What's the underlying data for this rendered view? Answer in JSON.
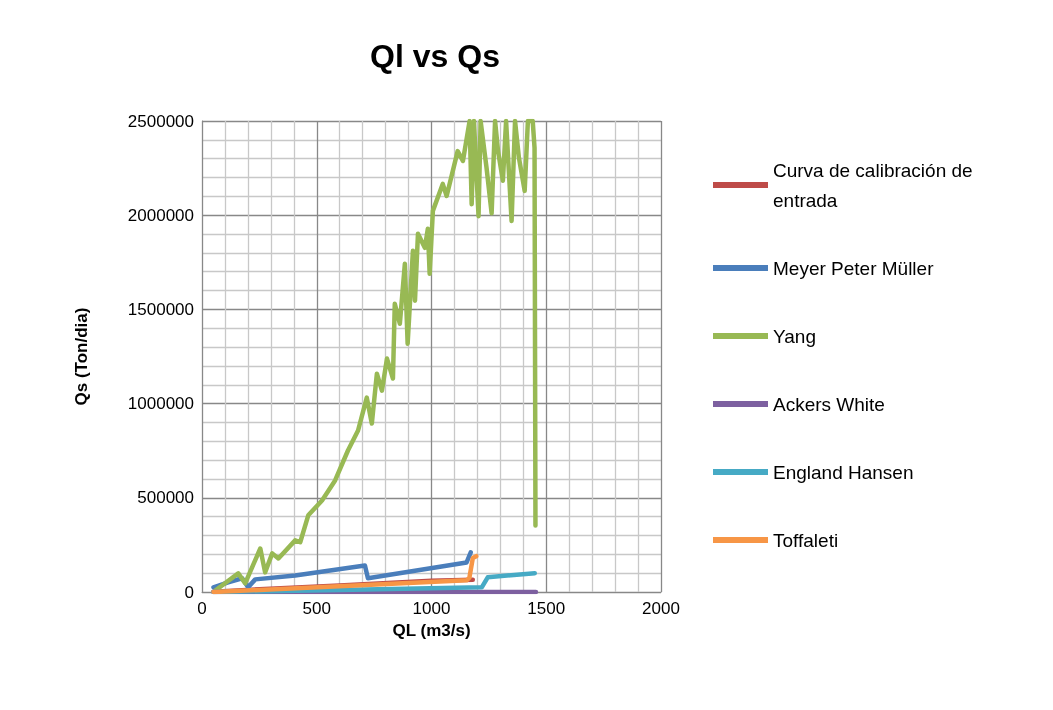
{
  "chart_data": {
    "type": "line",
    "title": "Ql vs Qs",
    "xlabel": "QL (m3/s)",
    "ylabel": "Qs (Ton/dia)",
    "xlim": [
      0,
      2000
    ],
    "xticks": [
      0,
      500,
      1000,
      1500,
      2000
    ],
    "ylim": [
      0,
      2500000
    ],
    "yticks": [
      0,
      500000,
      1000000,
      1500000,
      2000000,
      2500000
    ],
    "grid": true,
    "legend": "right",
    "marker": "none",
    "line_style": "solid",
    "series": [
      {
        "name": "Curva de calibración de entrada",
        "color": "#be4b48",
        "x": [
          50,
          600,
          1000,
          1180
        ],
        "values": [
          2000,
          35000,
          60000,
          65000
        ]
      },
      {
        "name": "Meyer Peter Müller",
        "color": "#4a7ebb",
        "x": [
          50,
          114,
          175,
          201,
          232,
          406,
          710,
          723,
          1153,
          1171
        ],
        "values": [
          25000,
          51000,
          73000,
          25000,
          67000,
          88000,
          141000,
          73000,
          157000,
          210000
        ]
      },
      {
        "name": "Yang",
        "color": "#98b954",
        "x": [
          58,
          158,
          188,
          254,
          275,
          306,
          333,
          406,
          428,
          463,
          523,
          580,
          636,
          680,
          718,
          740,
          762,
          784,
          806,
          832,
          840,
          862,
          884,
          896,
          919,
          928,
          941,
          971,
          984,
          992,
          1006,
          1049,
          1066,
          1114,
          1137,
          1166,
          1175,
          1185,
          1205,
          1214,
          1240,
          1262,
          1277,
          1290,
          1311,
          1325,
          1349,
          1364,
          1381,
          1406,
          1420,
          1441,
          1449,
          1453
        ],
        "values": [
          8000,
          99000,
          46000,
          231000,
          104000,
          205000,
          178000,
          274000,
          264000,
          407000,
          486000,
          592000,
          751000,
          857000,
          1032000,
          894000,
          1159000,
          1069000,
          1239000,
          1133000,
          1530000,
          1424000,
          1742000,
          1318000,
          1811000,
          1546000,
          1901000,
          1827000,
          1928000,
          1689000,
          2023000,
          2166000,
          2102000,
          2340000,
          2288000,
          2500000,
          2058000,
          2500000,
          1995000,
          2500000,
          2250000,
          2010000,
          2500000,
          2340000,
          2183000,
          2500000,
          1969000,
          2500000,
          2304000,
          2129000,
          2500000,
          2500000,
          2357000,
          353000
        ]
      },
      {
        "name": "Ackers White",
        "color": "#7d60a0",
        "x": [
          50,
          1455
        ],
        "values": [
          0,
          0
        ]
      },
      {
        "name": "England Hansen",
        "color": "#46aac5",
        "x": [
          50,
          600,
          1219,
          1245,
          1450
        ],
        "values": [
          0,
          10000,
          25000,
          78000,
          100000
        ]
      },
      {
        "name": "Toffaleti",
        "color": "#f79646",
        "x": [
          50,
          1153,
          1165,
          1180,
          1195
        ],
        "values": [
          0,
          62000,
          75000,
          180000,
          190000
        ]
      }
    ]
  }
}
